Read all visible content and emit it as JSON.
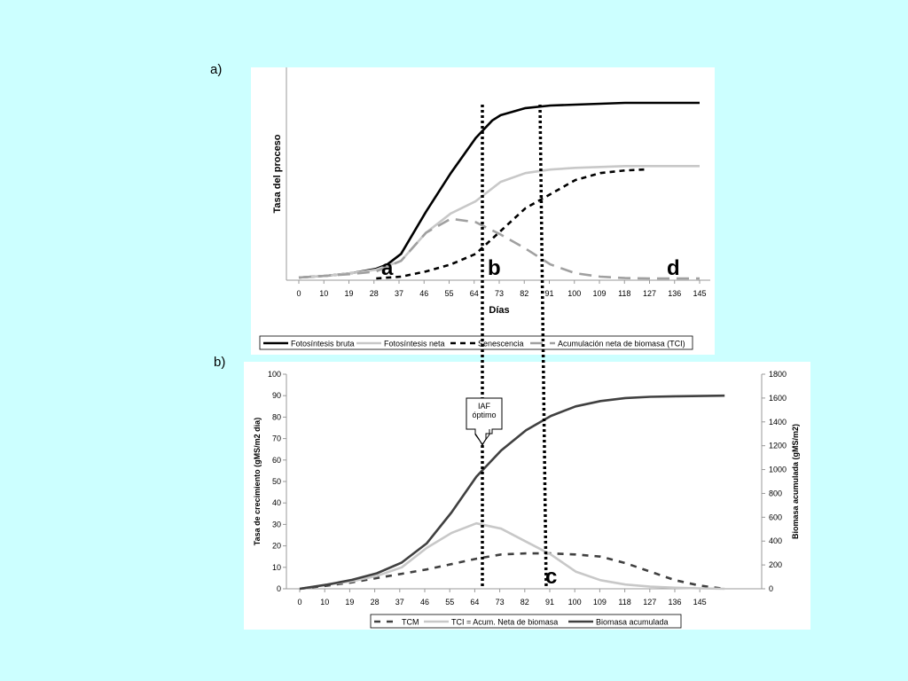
{
  "panel_a_label": "a)",
  "panel_b_label": "b)",
  "markers": {
    "a": "a",
    "b": "b",
    "c": "c",
    "d": "d"
  },
  "callout": {
    "line1": "IAF",
    "line2": "óptimo"
  },
  "colors": {
    "background": "#ccffff",
    "black": "#000000",
    "light_gray": "#c8c8c8",
    "mid_gray": "#a0a0a0",
    "dark_gray": "#404040"
  },
  "chart_data": [
    {
      "type": "line",
      "title": "",
      "xlabel": "Días",
      "ylabel": "Tasa del proceso",
      "x_ticks": [
        "0",
        "10",
        "19",
        "28",
        "37",
        "46",
        "55",
        "64",
        "73",
        "82",
        "91",
        "100",
        "109",
        "118",
        "127",
        "136",
        "145"
      ],
      "grid": false,
      "legend_position": "bottom",
      "series": [
        {
          "name": "Fotosíntesis bruta",
          "style": "solid-black",
          "x": [
            0,
            10,
            19,
            28,
            32,
            37,
            46,
            55,
            64,
            70,
            73,
            82,
            91,
            100,
            109,
            118,
            127,
            136,
            145
          ],
          "y": [
            0.5,
            1.5,
            3,
            5.5,
            8,
            14,
            38,
            60,
            80,
            90,
            93,
            97,
            98.5,
            99,
            99.5,
            100,
            100,
            100,
            100
          ]
        },
        {
          "name": "Fotosíntesis neta",
          "style": "solid-lightgray",
          "x": [
            0,
            10,
            19,
            28,
            37,
            46,
            55,
            64,
            73,
            82,
            91,
            100,
            109,
            118,
            127,
            136,
            145
          ],
          "y": [
            0.5,
            1.5,
            3,
            5,
            10,
            26,
            37,
            44,
            55,
            60,
            62,
            63,
            63.5,
            64,
            64,
            64,
            64
          ]
        },
        {
          "name": "Senescencia",
          "style": "dotted-black",
          "x": [
            28,
            37,
            46,
            55,
            64,
            73,
            82,
            91,
            100,
            109,
            118,
            125
          ],
          "y": [
            0,
            1,
            4,
            8,
            14,
            27,
            40,
            48,
            56,
            60,
            61.5,
            62
          ]
        },
        {
          "name": "Acumulación neta de biomasa (TCI)",
          "style": "dashed-gray",
          "x": [
            0,
            10,
            19,
            28,
            37,
            46,
            55,
            64,
            73,
            82,
            91,
            100,
            109,
            118,
            127,
            136,
            145
          ],
          "y": [
            0.5,
            1.5,
            2.5,
            4,
            10,
            26,
            34,
            32,
            25,
            17,
            8,
            3,
            1,
            0.2,
            0,
            0,
            0
          ]
        }
      ]
    },
    {
      "type": "line",
      "title": "",
      "xlabel": "",
      "ylabel": "Tasa de crecimiento (gMS/m2 dia)",
      "y2label": "Biomasa acumulada (gMS/m2)",
      "x_ticks": [
        "0",
        "10",
        "19",
        "28",
        "37",
        "46",
        "55",
        "64",
        "73",
        "82",
        "91",
        "100",
        "109",
        "118",
        "127",
        "136",
        "145"
      ],
      "ylim": [
        0,
        100
      ],
      "y2lim": [
        0,
        1800
      ],
      "y_ticks": [
        "0",
        "10",
        "20",
        "30",
        "40",
        "50",
        "60",
        "70",
        "80",
        "90",
        "100"
      ],
      "y2_ticks": [
        "0",
        "200",
        "400",
        "600",
        "800",
        "1000",
        "1200",
        "1400",
        "1600",
        "1800"
      ],
      "grid": false,
      "legend_position": "bottom",
      "series": [
        {
          "name": "TCM",
          "axis": "left",
          "style": "dashed-darkgray",
          "x": [
            0,
            10,
            19,
            28,
            37,
            46,
            55,
            64,
            73,
            82,
            91,
            100,
            109,
            118,
            127,
            136,
            145,
            154
          ],
          "y": [
            0,
            1.5,
            3,
            5,
            7,
            9,
            11.5,
            14,
            16,
            16.5,
            16.5,
            16,
            15,
            12,
            8,
            4,
            1.5,
            0
          ]
        },
        {
          "name": "TCI = Acum. Neta de biomasa",
          "axis": "left",
          "style": "solid-lightgray",
          "x": [
            0,
            10,
            19,
            28,
            37,
            46,
            55,
            64,
            73,
            82,
            91,
            100,
            109,
            118,
            127,
            136,
            145,
            154
          ],
          "y": [
            0,
            2,
            3.5,
            6,
            10,
            19,
            26,
            30.5,
            28,
            22,
            16,
            8,
            4,
            2,
            1,
            0.5,
            0.2,
            0
          ]
        },
        {
          "name": "Biomasa acumulada",
          "axis": "right",
          "style": "solid-darkgray",
          "x": [
            0,
            10,
            19,
            28,
            37,
            46,
            55,
            64,
            73,
            82,
            91,
            100,
            109,
            118,
            127,
            136,
            145,
            154
          ],
          "y": [
            0,
            35,
            75,
            130,
            220,
            380,
            640,
            940,
            1160,
            1330,
            1450,
            1530,
            1575,
            1600,
            1610,
            1615,
            1617,
            1620
          ]
        }
      ]
    }
  ]
}
